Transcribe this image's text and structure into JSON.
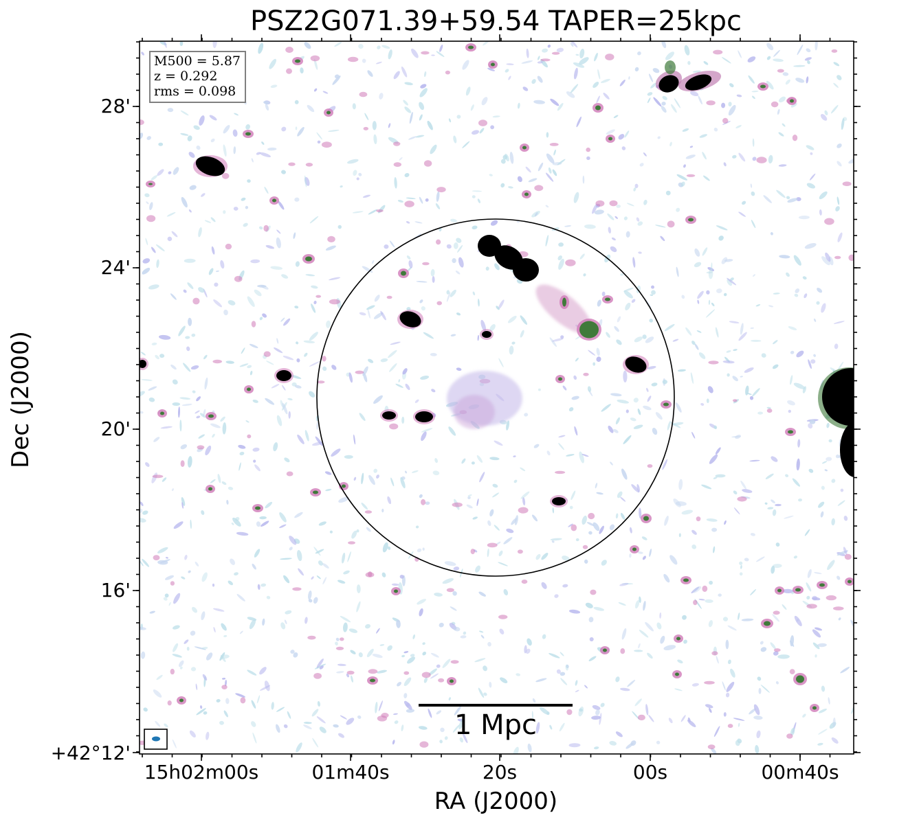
{
  "title": "PSZ2G071.39+59.54 TAPER=25kpc",
  "axes": {
    "xlabel": "RA (J2000)",
    "ylabel": "Dec (J2000)",
    "x_ticks": [
      "15h02m00s",
      "01m40s",
      "20s",
      "00s",
      "00m40s"
    ],
    "y_ticks": [
      "28'",
      "24'",
      "20'",
      "16'",
      "+42°12'"
    ]
  },
  "info_box": {
    "line1": "M500 = 5.87",
    "line2": "z = 0.292",
    "line3": "rms = 0.098"
  },
  "scale_bar": {
    "label": "1 Mpc"
  },
  "beam_marker": "filled-ellipse",
  "colors": {
    "noise_light": "#bfe0ea",
    "noise_violet": "#b8b8ee",
    "mid_magenta": "#d07ab8",
    "bright_green": "#3f7a3a",
    "source_core": "#000000",
    "beam": "#1f77b4"
  }
}
